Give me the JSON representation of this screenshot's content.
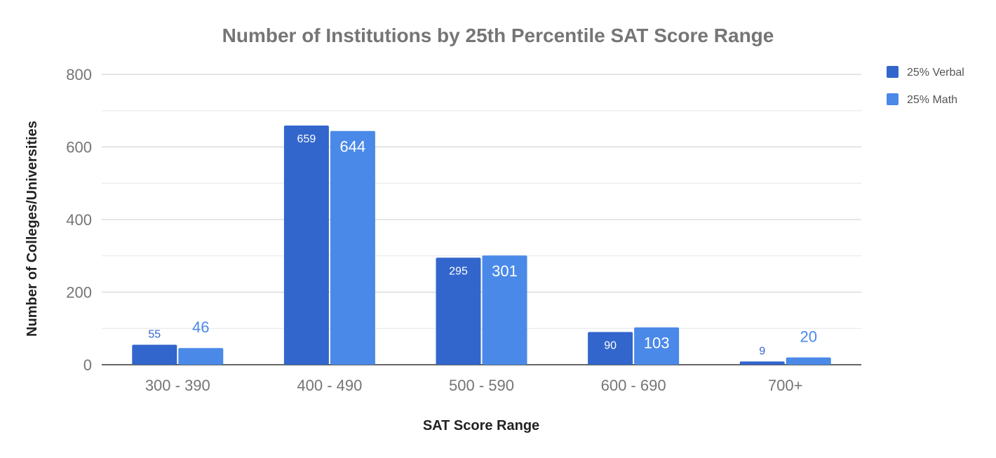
{
  "chart_data": {
    "type": "bar",
    "title": "Number of Institutions by 25th Percentile SAT Score Range",
    "xlabel": "SAT Score Range",
    "ylabel": "Number of Colleges/Universities",
    "categories": [
      "300 - 390",
      "400 - 490",
      "500 - 590",
      "600 - 690",
      "700+"
    ],
    "series": [
      {
        "name": "25% Verbal",
        "values": [
          55,
          659,
          295,
          90,
          9
        ],
        "color": "#3366cc",
        "label_color_inside": "#ffffff"
      },
      {
        "name": "25% Math",
        "values": [
          46,
          644,
          301,
          103,
          20
        ],
        "color": "#4a89e8",
        "label_color_inside": "#ffffff"
      }
    ],
    "ylim": [
      0,
      800
    ],
    "yticks": [
      0,
      200,
      400,
      600,
      800
    ],
    "grid": true,
    "minor_grid": true,
    "legend_position": "right"
  }
}
